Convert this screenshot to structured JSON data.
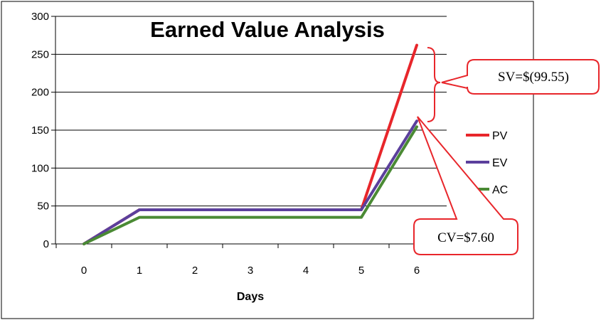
{
  "chart_data": {
    "type": "line",
    "title": "Earned Value Analysis",
    "xlabel": "Days",
    "ylabel": "",
    "x": [
      0,
      1,
      2,
      3,
      4,
      5,
      6
    ],
    "ylim": [
      0,
      300
    ],
    "yticks": [
      0,
      50,
      100,
      150,
      200,
      250,
      300
    ],
    "grid": true,
    "legend_position": "right",
    "series": [
      {
        "name": "PV",
        "color": "#e8262b",
        "values": [
          0,
          45,
          45,
          45,
          45,
          45,
          262
        ]
      },
      {
        "name": "EV",
        "color": "#5b3f9c",
        "values": [
          0,
          45,
          45,
          45,
          45,
          45,
          162
        ]
      },
      {
        "name": "AC",
        "color": "#4a8a34",
        "values": [
          0,
          35,
          35,
          35,
          35,
          35,
          154.4
        ]
      }
    ],
    "annotations": {
      "sv_label": "SV=$(99.55)",
      "cv_label": "CV=$7.60"
    }
  }
}
